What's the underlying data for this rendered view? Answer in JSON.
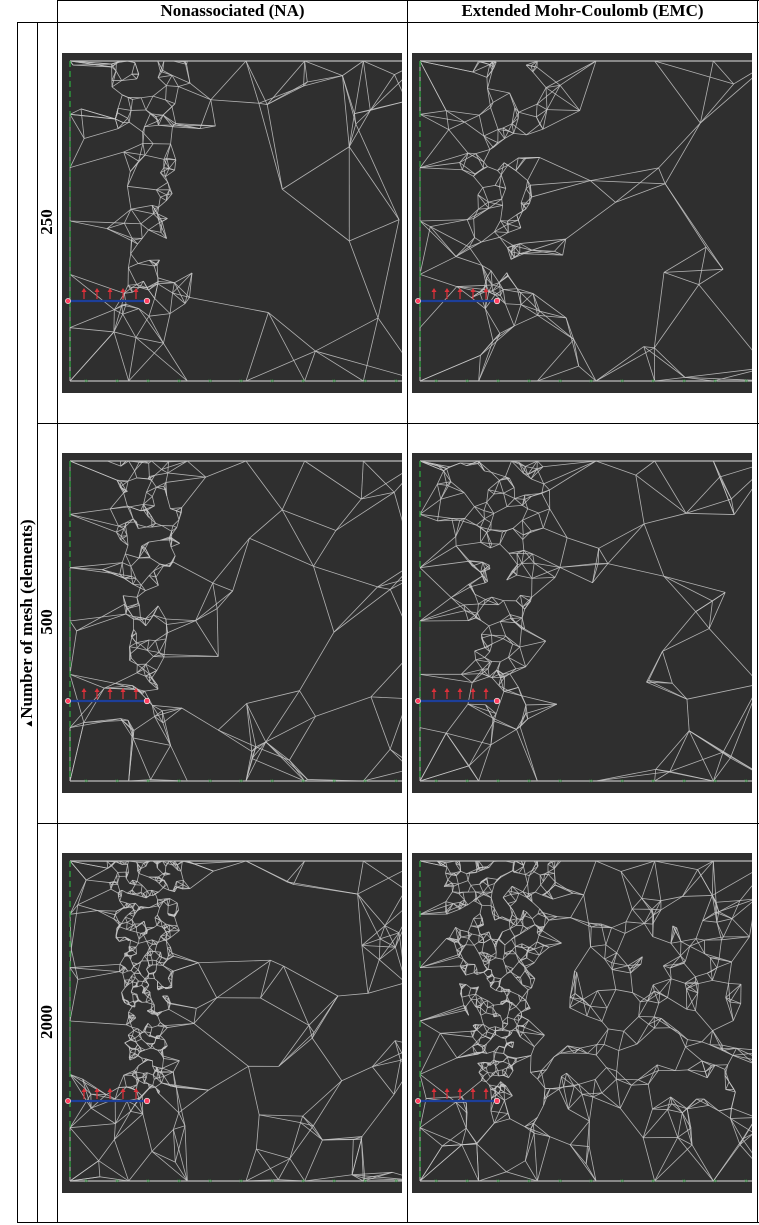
{
  "columns": [
    {
      "label": "Nonassociated (NA)"
    },
    {
      "label": "Extended Mohr-Coulomb (EMC)"
    }
  ],
  "axis_label": "Number of mesh (elements)",
  "rows": [
    {
      "label": "250",
      "mesh_elements": 250
    },
    {
      "label": "500",
      "mesh_elements": 500
    },
    {
      "label": "2000",
      "mesh_elements": 2000
    }
  ],
  "colors": {
    "panel_background": "#2f2f2f",
    "mesh_lines": "#c8c8c8",
    "boundary_line": "#bdbdbd",
    "fixity_marks": "#2e9e3e",
    "load_arrows": "#e0303a",
    "crack_line": "#1d3f9a",
    "node_marker": "#ff4060"
  }
}
